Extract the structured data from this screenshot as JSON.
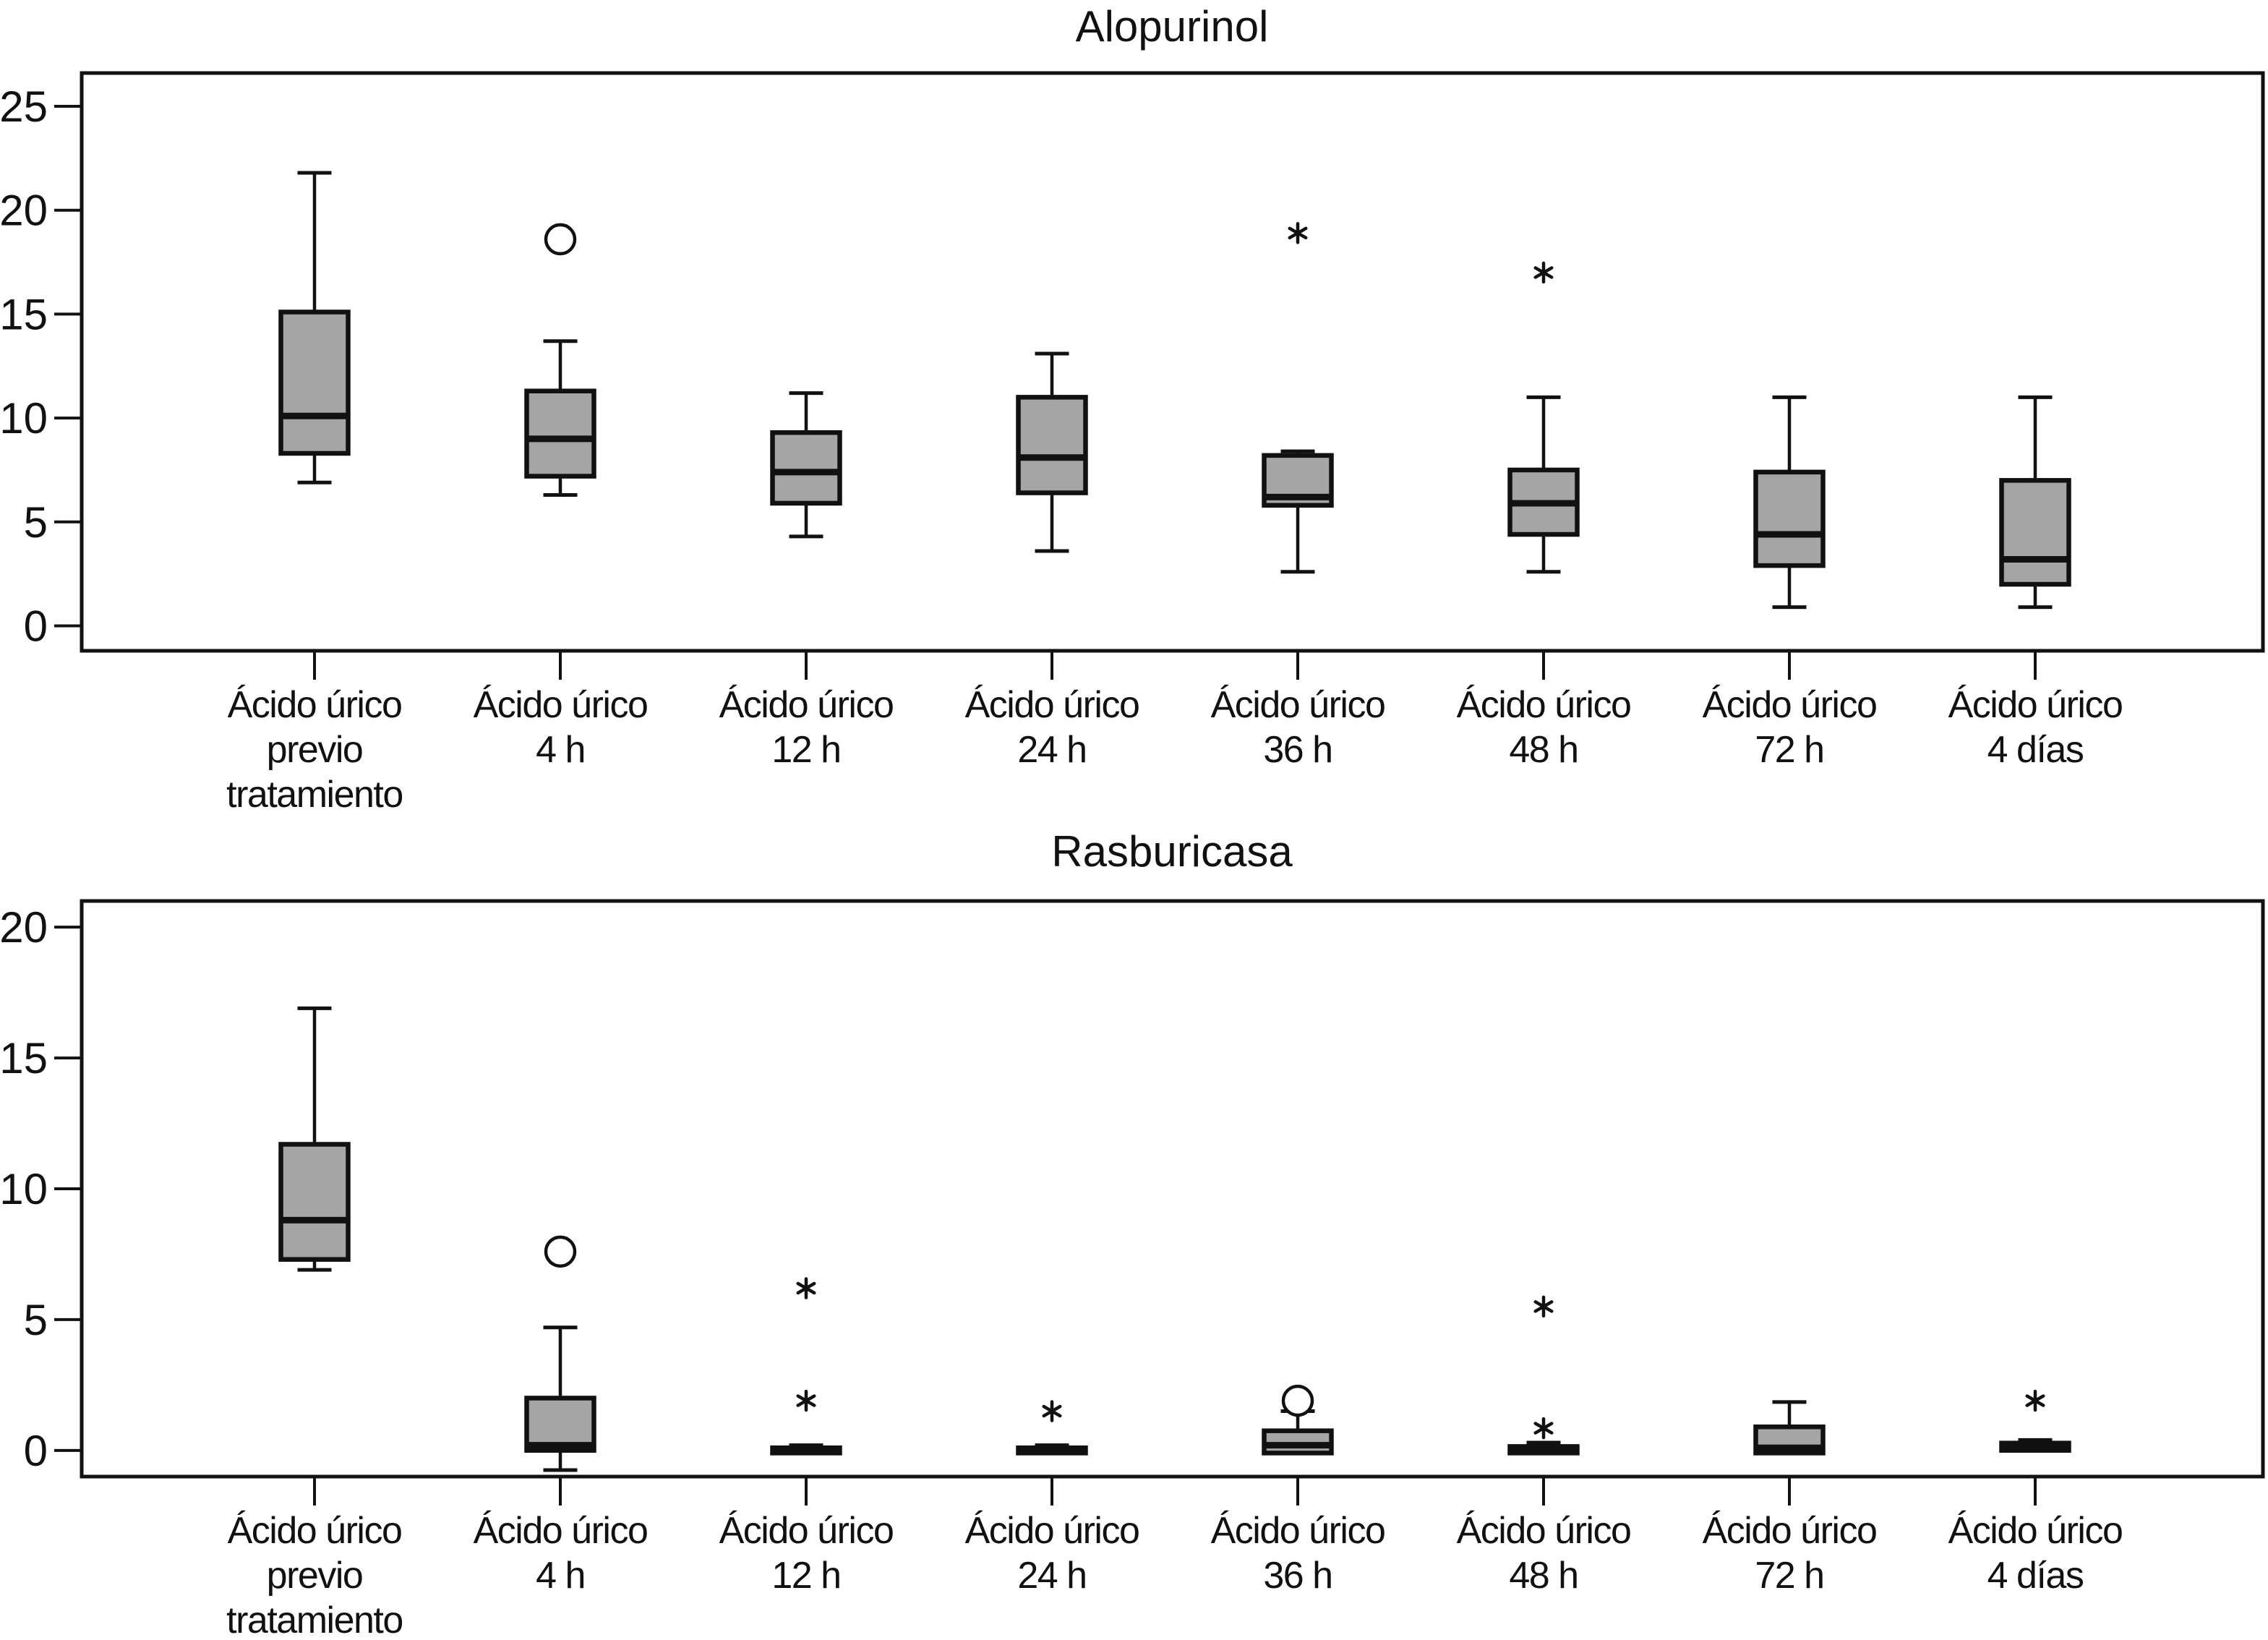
{
  "figure": {
    "background": "#ffffff",
    "ink": "#111111",
    "box_fill": "#a5a5a5",
    "marker_names": {
      "circle": "open-circle-outlier",
      "star": "asterisk-extreme-outlier"
    }
  },
  "chart_data": [
    {
      "type": "box",
      "title": "Alopurinol",
      "xlabel": "",
      "ylabel": "",
      "ylim": [
        -1.2,
        26.6
      ],
      "yticks": [
        0,
        5,
        10,
        15,
        20,
        25
      ],
      "grid": false,
      "legend": "none",
      "categories": [
        "Ácido úrico previo tratamiento",
        "Ácido úrico 4 h",
        "Ácido úrico 12 h",
        "Ácido úrico 24 h",
        "Ácido úrico 36 h",
        "Ácido úrico 48 h",
        "Ácido úrico 72 h",
        "Ácido úrico 4 días"
      ],
      "category_lines": [
        [
          "Ácido úrico",
          "previo",
          "tratamiento"
        ],
        [
          "Ácido úrico",
          "4 h"
        ],
        [
          "Ácido úrico",
          "12 h"
        ],
        [
          "Ácido úrico",
          "24 h"
        ],
        [
          "Ácido úrico",
          "36 h"
        ],
        [
          "Ácido úrico",
          "48 h"
        ],
        [
          "Ácido úrico",
          "72 h"
        ],
        [
          "Ácido úrico",
          "4 días"
        ]
      ],
      "boxes": [
        {
          "whisker_low": 6.9,
          "q1": 8.3,
          "median": 10.1,
          "q3": 15.1,
          "whisker_high": 21.8,
          "outliers": []
        },
        {
          "whisker_low": 6.3,
          "q1": 7.2,
          "median": 9.0,
          "q3": 11.3,
          "whisker_high": 13.7,
          "outliers": [
            {
              "shape": "circle",
              "value": 18.6
            }
          ]
        },
        {
          "whisker_low": 4.3,
          "q1": 5.9,
          "median": 7.4,
          "q3": 9.3,
          "whisker_high": 11.2,
          "outliers": []
        },
        {
          "whisker_low": 3.6,
          "q1": 6.4,
          "median": 8.1,
          "q3": 11.0,
          "whisker_high": 13.1,
          "outliers": []
        },
        {
          "whisker_low": 2.6,
          "q1": 5.8,
          "median": 6.2,
          "q3": 8.2,
          "whisker_high": 8.4,
          "outliers": [
            {
              "shape": "star",
              "value": 18.9
            }
          ]
        },
        {
          "whisker_low": 2.6,
          "q1": 4.4,
          "median": 5.9,
          "q3": 7.5,
          "whisker_high": 11.0,
          "outliers": [
            {
              "shape": "star",
              "value": 17.0
            }
          ]
        },
        {
          "whisker_low": 0.9,
          "q1": 2.9,
          "median": 4.4,
          "q3": 7.4,
          "whisker_high": 11.0,
          "outliers": []
        },
        {
          "whisker_low": 0.9,
          "q1": 2.0,
          "median": 3.2,
          "q3": 7.0,
          "whisker_high": 11.0,
          "outliers": []
        }
      ]
    },
    {
      "type": "box",
      "title": "Rasburicasa",
      "xlabel": "",
      "ylabel": "",
      "ylim": [
        -1.0,
        21.0
      ],
      "yticks": [
        0,
        5,
        10,
        15,
        20
      ],
      "grid": false,
      "legend": "none",
      "categories": [
        "Ácido úrico previo tratamiento",
        "Ácido úrico 4 h",
        "Ácido úrico 12 h",
        "Ácido úrico 24 h",
        "Ácido úrico 36 h",
        "Ácido úrico 48 h",
        "Ácido úrico 72 h",
        "Ácido úrico 4 días"
      ],
      "category_lines": [
        [
          "Ácido úrico",
          "previo",
          "tratamiento"
        ],
        [
          "Ácido úrico",
          "4 h"
        ],
        [
          "Ácido úrico",
          "12 h"
        ],
        [
          "Ácido úrico",
          "24 h"
        ],
        [
          "Ácido úrico",
          "36 h"
        ],
        [
          "Ácido úrico",
          "48 h"
        ],
        [
          "Ácido úrico",
          "72 h"
        ],
        [
          "Ácido úrico",
          "4 días"
        ]
      ],
      "boxes": [
        {
          "whisker_low": 6.9,
          "q1": 7.3,
          "median": 8.8,
          "q3": 11.7,
          "whisker_high": 16.9,
          "outliers": []
        },
        {
          "whisker_low": -0.75,
          "q1": 0.0,
          "median": 0.2,
          "q3": 2.0,
          "whisker_high": 4.7,
          "outliers": [
            {
              "shape": "circle",
              "value": 7.6
            }
          ]
        },
        {
          "whisker_low": -0.1,
          "q1": -0.1,
          "median": 0.0,
          "q3": 0.1,
          "whisker_high": 0.2,
          "outliers": [
            {
              "shape": "star",
              "value": 6.2
            },
            {
              "shape": "star",
              "value": 1.9
            }
          ]
        },
        {
          "whisker_low": -0.1,
          "q1": -0.1,
          "median": 0.0,
          "q3": 0.1,
          "whisker_high": 0.2,
          "outliers": [
            {
              "shape": "star",
              "value": 1.5
            }
          ]
        },
        {
          "whisker_low": -0.1,
          "q1": -0.1,
          "median": 0.2,
          "q3": 0.75,
          "whisker_high": 1.5,
          "outliers": [
            {
              "shape": "circle",
              "value": 1.9
            }
          ]
        },
        {
          "whisker_low": -0.1,
          "q1": -0.1,
          "median": 0.02,
          "q3": 0.15,
          "whisker_high": 0.3,
          "outliers": [
            {
              "shape": "star",
              "value": 5.5
            },
            {
              "shape": "star",
              "value": 0.85
            }
          ]
        },
        {
          "whisker_low": -0.1,
          "q1": -0.1,
          "median": 0.1,
          "q3": 0.9,
          "whisker_high": 1.85,
          "outliers": []
        },
        {
          "whisker_low": 0.0,
          "q1": 0.0,
          "median": 0.1,
          "q3": 0.28,
          "whisker_high": 0.4,
          "outliers": [
            {
              "shape": "star",
              "value": 1.9
            }
          ]
        }
      ]
    }
  ]
}
